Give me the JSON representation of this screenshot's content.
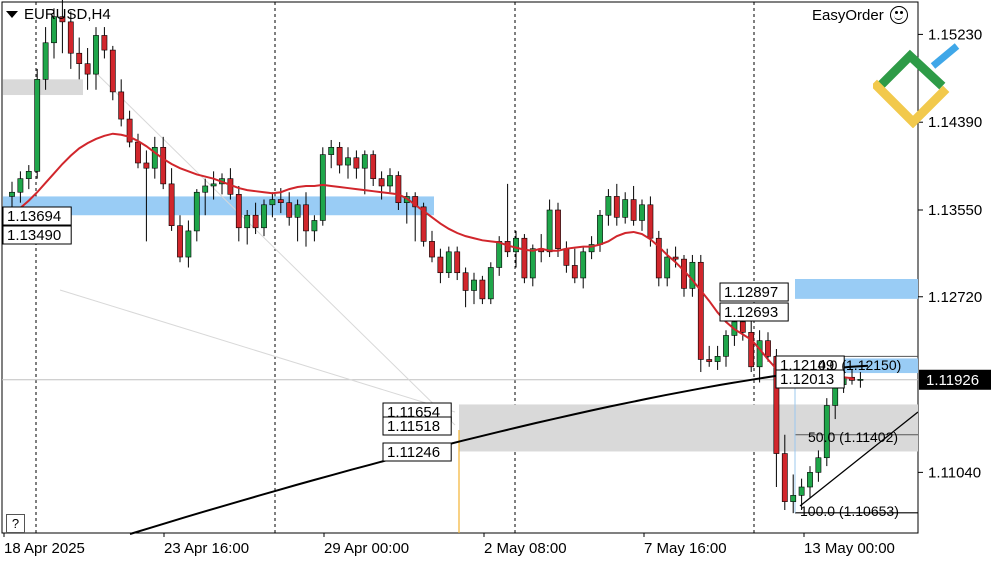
{
  "header": {
    "symbol": "EURUSD,H4",
    "plugin": "EasyOrder"
  },
  "chart_data": {
    "type": "candlestick",
    "ylim": [
      1.1046,
      1.1554
    ],
    "y_ticks": [
      "1.15230",
      "1.14390",
      "1.13550",
      "1.12720",
      "1.11040"
    ],
    "x_labels": [
      "18 Apr 2025",
      "23 Apr 16:00",
      "29 Apr 00:00",
      "2 May 08:00",
      "7 May 16:00",
      "13 May 00:00"
    ],
    "current_price": "1.11926",
    "candles": [
      [
        1.1368,
        1.1382,
        1.1352,
        1.1372
      ],
      [
        1.1372,
        1.1392,
        1.1362,
        1.1385
      ],
      [
        1.1385,
        1.1398,
        1.1375,
        1.1392
      ],
      [
        1.1392,
        1.149,
        1.1385,
        1.148
      ],
      [
        1.148,
        1.153,
        1.147,
        1.1515
      ],
      [
        1.1515,
        1.1548,
        1.15,
        1.154
      ],
      [
        1.154,
        1.1556,
        1.1505,
        1.1535
      ],
      [
        1.1535,
        1.1545,
        1.149,
        1.1505
      ],
      [
        1.1505,
        1.152,
        1.148,
        1.1495
      ],
      [
        1.1495,
        1.151,
        1.147,
        1.1485
      ],
      [
        1.1485,
        1.153,
        1.147,
        1.1522
      ],
      [
        1.1522,
        1.153,
        1.15,
        1.1508
      ],
      [
        1.1508,
        1.1512,
        1.146,
        1.1468
      ],
      [
        1.1468,
        1.148,
        1.1435,
        1.1442
      ],
      [
        1.1442,
        1.145,
        1.1415,
        1.142
      ],
      [
        1.142,
        1.1428,
        1.1395,
        1.14
      ],
      [
        1.14,
        1.1412,
        1.1325,
        1.1395
      ],
      [
        1.1395,
        1.1425,
        1.1385,
        1.1415
      ],
      [
        1.1415,
        1.1425,
        1.1375,
        1.138
      ],
      [
        1.138,
        1.1395,
        1.1335,
        1.134
      ],
      [
        1.134,
        1.135,
        1.1305,
        1.131
      ],
      [
        1.131,
        1.1345,
        1.13,
        1.1335
      ],
      [
        1.1335,
        1.1375,
        1.1325,
        1.1372
      ],
      [
        1.1372,
        1.1385,
        1.135,
        1.1378
      ],
      [
        1.1378,
        1.1392,
        1.1365,
        1.138
      ],
      [
        1.138,
        1.139,
        1.137,
        1.1385
      ],
      [
        1.1385,
        1.1395,
        1.1365,
        1.137
      ],
      [
        1.137,
        1.1378,
        1.1325,
        1.1338
      ],
      [
        1.1338,
        1.1355,
        1.1322,
        1.135
      ],
      [
        1.135,
        1.1362,
        1.1332,
        1.1338
      ],
      [
        1.1338,
        1.1365,
        1.133,
        1.136
      ],
      [
        1.136,
        1.1372,
        1.1348,
        1.1365
      ],
      [
        1.1365,
        1.1376,
        1.1352,
        1.1362
      ],
      [
        1.1362,
        1.1372,
        1.134,
        1.1348
      ],
      [
        1.1348,
        1.1365,
        1.1325,
        1.136
      ],
      [
        1.136,
        1.1372,
        1.132,
        1.1335
      ],
      [
        1.1335,
        1.135,
        1.1325,
        1.1345
      ],
      [
        1.1345,
        1.1415,
        1.134,
        1.1408
      ],
      [
        1.1408,
        1.1422,
        1.1395,
        1.1415
      ],
      [
        1.1415,
        1.142,
        1.139,
        1.1398
      ],
      [
        1.1398,
        1.1415,
        1.1385,
        1.1405
      ],
      [
        1.1405,
        1.1412,
        1.1385,
        1.1395
      ],
      [
        1.1395,
        1.1412,
        1.137,
        1.1408
      ],
      [
        1.1408,
        1.1412,
        1.1378,
        1.1385
      ],
      [
        1.1385,
        1.1392,
        1.1365,
        1.1378
      ],
      [
        1.1378,
        1.1395,
        1.1372,
        1.1388
      ],
      [
        1.1388,
        1.1392,
        1.1355,
        1.1362
      ],
      [
        1.1362,
        1.1372,
        1.1342,
        1.1368
      ],
      [
        1.1368,
        1.1372,
        1.1325,
        1.1358
      ],
      [
        1.1358,
        1.1362,
        1.132,
        1.1325
      ],
      [
        1.1325,
        1.1335,
        1.1305,
        1.131
      ],
      [
        1.131,
        1.1318,
        1.1285,
        1.1295
      ],
      [
        1.1295,
        1.132,
        1.129,
        1.1315
      ],
      [
        1.1315,
        1.132,
        1.1288,
        1.1295
      ],
      [
        1.1295,
        1.13,
        1.1262,
        1.1278
      ],
      [
        1.1278,
        1.1295,
        1.1265,
        1.1288
      ],
      [
        1.1288,
        1.1292,
        1.1265,
        1.127
      ],
      [
        1.127,
        1.1305,
        1.1265,
        1.13
      ],
      [
        1.13,
        1.133,
        1.1292,
        1.1325
      ],
      [
        1.1325,
        1.138,
        1.131,
        1.1315
      ],
      [
        1.1315,
        1.1335,
        1.13,
        1.1328
      ],
      [
        1.1328,
        1.1332,
        1.1285,
        1.129
      ],
      [
        1.129,
        1.1322,
        1.1282,
        1.1318
      ],
      [
        1.1318,
        1.1332,
        1.1305,
        1.1315
      ],
      [
        1.1315,
        1.1365,
        1.131,
        1.1355
      ],
      [
        1.1355,
        1.1362,
        1.131,
        1.1318
      ],
      [
        1.1318,
        1.1325,
        1.1295,
        1.1302
      ],
      [
        1.1302,
        1.1318,
        1.1285,
        1.129
      ],
      [
        1.129,
        1.132,
        1.128,
        1.1315
      ],
      [
        1.1315,
        1.133,
        1.1308,
        1.1322
      ],
      [
        1.1322,
        1.1355,
        1.1315,
        1.135
      ],
      [
        1.135,
        1.1375,
        1.134,
        1.1368
      ],
      [
        1.1368,
        1.138,
        1.134,
        1.1348
      ],
      [
        1.1348,
        1.1372,
        1.1342,
        1.1365
      ],
      [
        1.1365,
        1.1378,
        1.134,
        1.1345
      ],
      [
        1.1345,
        1.1365,
        1.1335,
        1.136
      ],
      [
        1.136,
        1.1368,
        1.132,
        1.1328
      ],
      [
        1.1328,
        1.1335,
        1.1282,
        1.129
      ],
      [
        1.129,
        1.1318,
        1.1282,
        1.131
      ],
      [
        1.131,
        1.132,
        1.13,
        1.1308
      ],
      [
        1.1308,
        1.1312,
        1.1272,
        1.128
      ],
      [
        1.128,
        1.1312,
        1.1272,
        1.1305
      ],
      [
        1.1305,
        1.1312,
        1.12,
        1.1212
      ],
      [
        1.1212,
        1.1225,
        1.1205,
        1.121
      ],
      [
        1.121,
        1.1225,
        1.1202,
        1.1215
      ],
      [
        1.1215,
        1.124,
        1.1205,
        1.1235
      ],
      [
        1.1235,
        1.1255,
        1.1225,
        1.1248
      ],
      [
        1.1248,
        1.1262,
        1.123,
        1.1238
      ],
      [
        1.1238,
        1.125,
        1.12,
        1.1205
      ],
      [
        1.1205,
        1.124,
        1.119,
        1.123
      ],
      [
        1.123,
        1.1238,
        1.121,
        1.1215
      ],
      [
        1.1215,
        1.1222,
        1.109,
        1.1122
      ],
      [
        1.1122,
        1.114,
        1.1068,
        1.1076
      ],
      [
        1.1076,
        1.1102,
        1.1065,
        1.1082
      ],
      [
        1.1082,
        1.1098,
        1.1068,
        1.109
      ],
      [
        1.109,
        1.111,
        1.108,
        1.1104
      ],
      [
        1.1104,
        1.1125,
        1.1095,
        1.1118
      ],
      [
        1.1118,
        1.1175,
        1.111,
        1.1168
      ],
      [
        1.1168,
        1.1195,
        1.1155,
        1.1188
      ],
      [
        1.1188,
        1.12,
        1.118,
        1.1195
      ],
      [
        1.1195,
        1.1202,
        1.1188,
        1.1192
      ],
      [
        1.1192,
        1.12,
        1.1185,
        1.1193
      ]
    ],
    "ma_fast": [
      1.1352,
      1.1357,
      1.1364,
      1.1372,
      1.1381,
      1.139,
      1.1399,
      1.1407,
      1.1414,
      1.1419,
      1.1423,
      1.1426,
      1.1428,
      1.1427,
      1.1425,
      1.1421,
      1.1416,
      1.141,
      1.1404,
      1.1399,
      1.1395,
      1.1392,
      1.1389,
      1.1387,
      1.1385,
      1.1382,
      1.1379,
      1.1376,
      1.1374,
      1.1373,
      1.1372,
      1.1371,
      1.1372,
      1.1375,
      1.1377,
      1.1378,
      1.1378,
      1.1379,
      1.1378,
      1.1377,
      1.1376,
      1.1375,
      1.1374,
      1.1373,
      1.1372,
      1.1371,
      1.137,
      1.1366,
      1.136,
      1.1354,
      1.1348,
      1.1342,
      1.1337,
      1.1333,
      1.133,
      1.1328,
      1.1326,
      1.1325,
      1.1324,
      1.1321,
      1.1319,
      1.1317,
      1.1316,
      1.1318,
      1.1316,
      1.1316,
      1.1318,
      1.1319,
      1.132,
      1.132,
      1.1322,
      1.1325,
      1.133,
      1.1333,
      1.1334,
      1.1332,
      1.1327,
      1.132,
      1.1312,
      1.1305,
      1.1297,
      1.1288,
      1.1278,
      1.1268,
      1.1257,
      1.1248,
      1.1241,
      1.1236,
      1.1231,
      1.1222,
      1.1212,
      1.1203,
      1.1196,
      1.1194,
      1.1194,
      1.1194,
      1.1195,
      1.1193,
      1.1194,
      1.1195,
      1.1194
    ],
    "ma_slow": {
      "start": 1.1045,
      "end": 1.1206
    },
    "zones": [
      {
        "top": 1.148,
        "bottom": 1.1465,
        "color": "#d9d9d9"
      },
      {
        "top": 1.1368,
        "bottom": 1.135,
        "color": "#99ccf5"
      },
      {
        "top": 1.1169,
        "bottom": 1.1124,
        "color": "#d9d9d9"
      },
      {
        "top": 1.1289,
        "bottom": 1.127,
        "color": "#99ccf5"
      },
      {
        "top": 1.1213,
        "bottom": 1.1199,
        "color": "#99ccf5"
      }
    ],
    "price_labels": [
      "1.13694",
      "1.13490",
      "1.12897",
      "1.12693",
      "1.12149",
      "1.12013",
      "1.11654",
      "1.11518",
      "1.11246"
    ],
    "fibo_labels": [
      "0.0 (1.12150)",
      "50.0 (1.11402)",
      "100.0 (1.10653)"
    ]
  }
}
